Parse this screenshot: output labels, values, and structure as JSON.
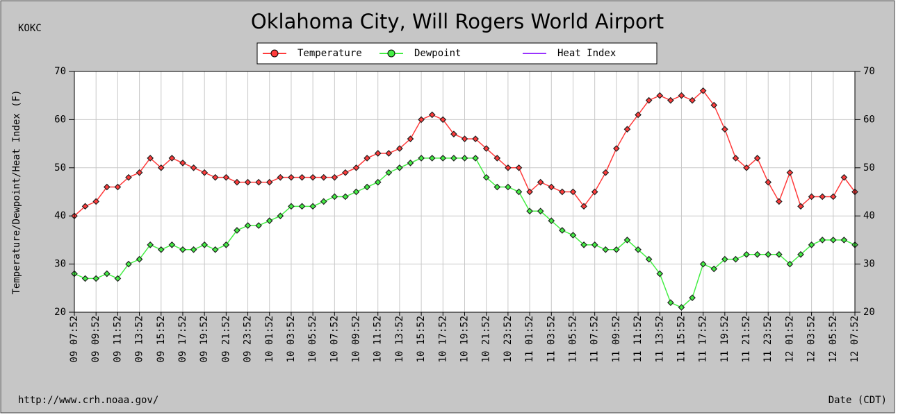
{
  "chart_data": {
    "type": "line",
    "title": "Oklahoma City, Will Rogers World Airport",
    "station": "KOKC",
    "source": "http://www.crh.noaa.gov/",
    "x_label": "Date (CDT)",
    "y_label": "Temperature/Dewpoint/Heat Index (F)",
    "categories": [
      "09 07:52",
      null,
      "09 09:52",
      null,
      "09 11:52",
      null,
      "09 13:52",
      null,
      "09 15:52",
      null,
      "09 17:52",
      null,
      "09 19:52",
      null,
      "09 21:52",
      null,
      "09 23:52",
      null,
      "10 01:52",
      null,
      "10 03:52",
      null,
      "10 05:52",
      null,
      "10 07:52",
      null,
      "10 09:52",
      null,
      "10 11:52",
      null,
      "10 13:52",
      null,
      "10 15:52",
      null,
      "10 17:52",
      null,
      "10 19:52",
      null,
      "10 21:52",
      null,
      "10 23:52",
      null,
      "11 01:52",
      null,
      "11 03:52",
      null,
      "11 05:52",
      null,
      "11 07:52",
      null,
      "11 09:52",
      null,
      "11 11:52",
      null,
      "11 13:52",
      null,
      "11 15:52",
      null,
      "11 17:52",
      null,
      "11 19:52",
      null,
      "11 21:52",
      null,
      "11 23:52",
      null,
      "12 01:52",
      null,
      "12 03:52",
      null,
      "12 05:52",
      null,
      "12 07:52"
    ],
    "series": [
      {
        "name": "Temperature",
        "color": "#ff3b3b",
        "values": [
          40,
          42,
          43,
          46,
          46,
          48,
          49,
          52,
          50,
          52,
          51,
          50,
          49,
          48,
          48,
          47,
          47,
          47,
          47,
          48,
          48,
          48,
          48,
          48,
          48,
          49,
          50,
          52,
          53,
          53,
          54,
          56,
          60,
          61,
          60,
          57,
          56,
          56,
          54,
          52,
          50,
          50,
          45,
          47,
          46,
          45,
          45,
          42,
          45,
          49,
          54,
          58,
          61,
          64,
          65,
          64,
          65,
          64,
          66,
          63,
          58,
          52,
          50,
          52,
          47,
          43,
          49,
          42,
          44,
          44,
          44,
          48,
          45
        ]
      },
      {
        "name": "Dewpoint",
        "color": "#44ee44",
        "values": [
          28,
          27,
          27,
          28,
          27,
          30,
          31,
          34,
          33,
          34,
          33,
          33,
          34,
          33,
          34,
          37,
          38,
          38,
          39,
          40,
          42,
          42,
          42,
          43,
          44,
          44,
          45,
          46,
          47,
          49,
          50,
          51,
          52,
          52,
          52,
          52,
          52,
          52,
          48,
          46,
          46,
          45,
          41,
          41,
          39,
          37,
          36,
          34,
          34,
          33,
          33,
          35,
          33,
          31,
          28,
          22,
          21,
          23,
          30,
          29,
          31,
          31,
          32,
          32,
          32,
          32,
          30,
          32,
          34,
          35,
          35,
          35,
          34
        ]
      },
      {
        "name": "Heat Index",
        "color": "#9933ff",
        "values": [
          null,
          null,
          null,
          null,
          null,
          null,
          null,
          null,
          null,
          null,
          null,
          null,
          null,
          null,
          null,
          null,
          null,
          null,
          null,
          null,
          null,
          null,
          null,
          null,
          null,
          null,
          null,
          null,
          null,
          null,
          null,
          null,
          null,
          null,
          null,
          null,
          null,
          null,
          null,
          null,
          null,
          null,
          null,
          null,
          null,
          null,
          null,
          null,
          null,
          null,
          null,
          null,
          null,
          null,
          null,
          null,
          null,
          null,
          null,
          null,
          null,
          null,
          null,
          null,
          null,
          null,
          null,
          null,
          null,
          null,
          null,
          null,
          null
        ]
      }
    ],
    "ylim": [
      20,
      70
    ],
    "yticks": [
      20,
      30,
      40,
      50,
      60,
      70
    ],
    "y2lim": [
      20,
      70
    ],
    "y2ticks": [
      20,
      30,
      40,
      50,
      60,
      70
    ],
    "grid": true
  }
}
